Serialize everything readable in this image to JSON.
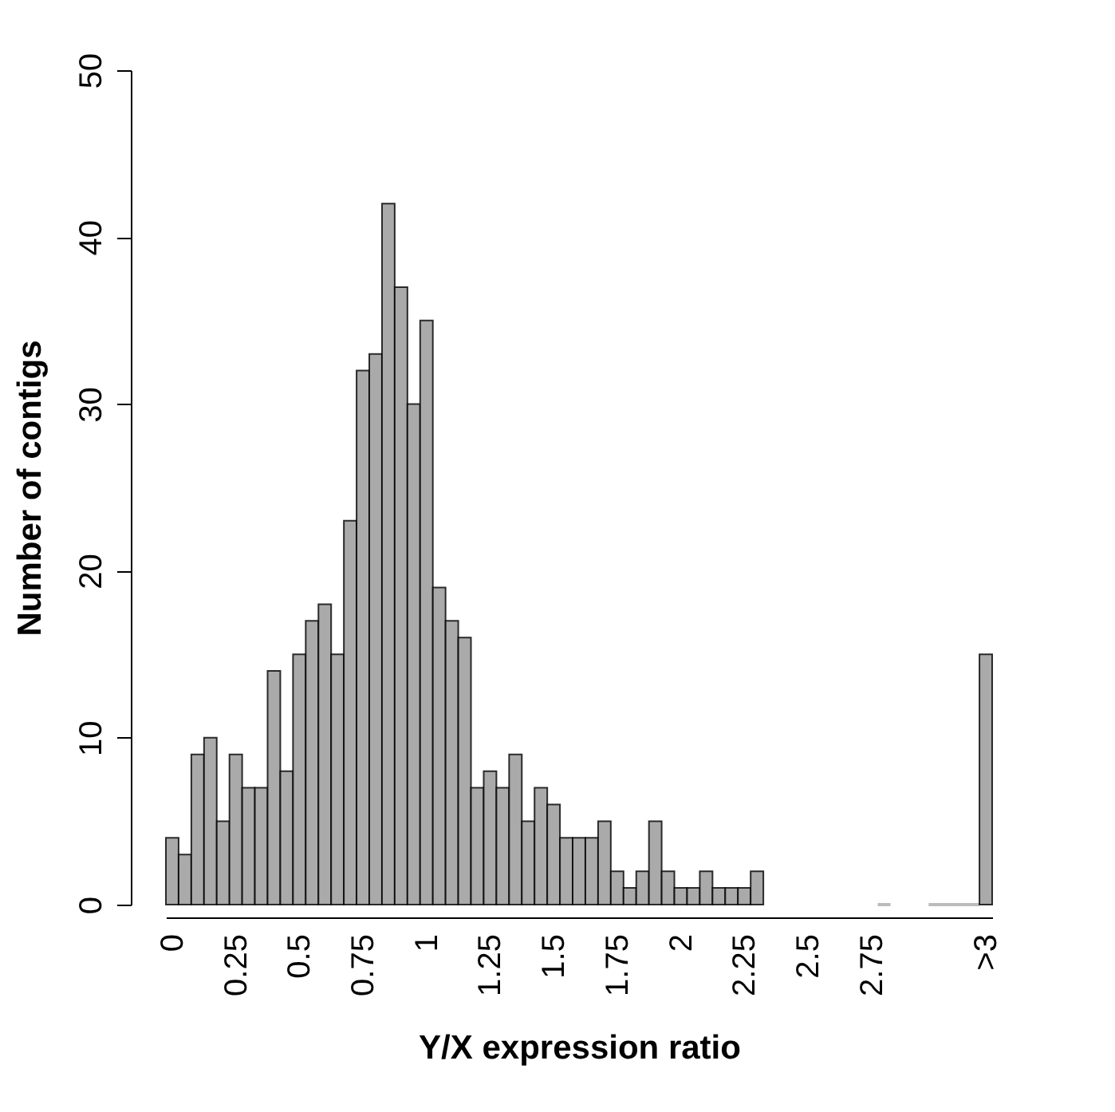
{
  "chart_data": {
    "type": "histogram",
    "xlabel": "Y/X expression ratio",
    "ylabel": "Number of contigs",
    "bins": [
      -0.025,
      0.025,
      0.075,
      0.125,
      0.175,
      0.225,
      0.275,
      0.325,
      0.375,
      0.425,
      0.475,
      0.525,
      0.575,
      0.625,
      0.675,
      0.725,
      0.775,
      0.825,
      0.875,
      0.925,
      0.975,
      1.025,
      1.075,
      1.125,
      1.175,
      1.225,
      1.275,
      1.325,
      1.375,
      1.425,
      1.475,
      1.525,
      1.575,
      1.625,
      1.675,
      1.725,
      1.775,
      1.825,
      1.875,
      1.925,
      1.975,
      2.025,
      2.075,
      2.125,
      2.175,
      2.225,
      2.275,
      2.325,
      2.775,
      2.825,
      2.975,
      3.175,
      3.225
    ],
    "values": [
      4,
      3,
      9,
      10,
      5,
      9,
      7,
      7,
      14,
      8,
      15,
      17,
      18,
      15,
      23,
      32,
      33,
      42,
      37,
      30,
      35,
      19,
      17,
      16,
      7,
      8,
      7,
      9,
      5,
      7,
      6,
      4,
      4,
      4,
      5,
      2,
      1,
      2,
      5,
      2,
      1,
      1,
      2,
      1,
      1,
      1,
      2,
      null,
      0,
      null,
      0,
      15
    ],
    "color": "#aaaaaa",
    "xlim": [
      -0.025,
      3.225
    ],
    "xticks": [
      0,
      0.25,
      0.5,
      0.75,
      1,
      1.25,
      1.5,
      1.75,
      2,
      2.25,
      2.5,
      2.75,
      {
        "value": 3.2,
        "label": ">3"
      }
    ],
    "ylim": [
      0,
      50
    ],
    "yticks": [
      0,
      10,
      20,
      30,
      40,
      50
    ],
    "grid": false
  }
}
